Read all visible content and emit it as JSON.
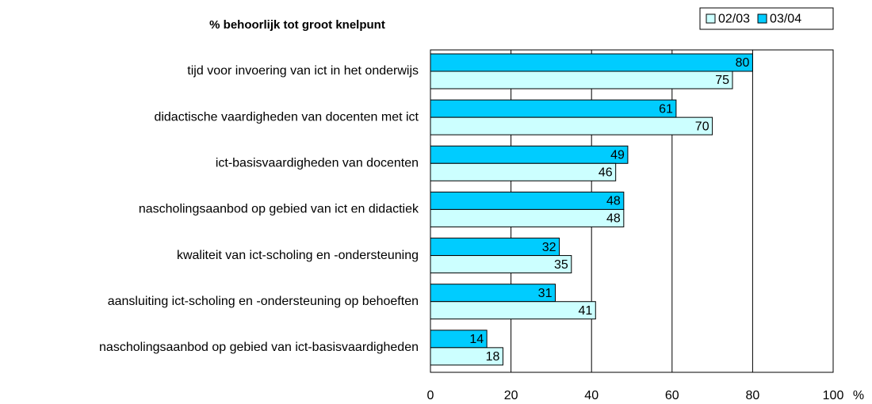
{
  "chart_data": {
    "type": "bar",
    "orientation": "horizontal",
    "title": "% behoorlijk tot groot knelpunt",
    "xlabel": "%",
    "categories": [
      "tijd voor invoering van ict in het onderwijs",
      "didactische vaardigheden van docenten met ict",
      "ict-basisvaardigheden van docenten",
      "nascholingsaanbod op gebied van ict en didactiek",
      "kwaliteit van ict-scholing en -ondersteuning",
      "aansluiting ict-scholing en -ondersteuning op behoeften",
      "nascholingsaanbod op gebied van ict-basisvaardigheden"
    ],
    "series": [
      {
        "name": "02/03",
        "color": "#ccffff",
        "values": [
          75,
          70,
          46,
          48,
          35,
          41,
          18
        ]
      },
      {
        "name": "03/04",
        "color": "#00ccff",
        "values": [
          80,
          61,
          49,
          48,
          32,
          31,
          14
        ]
      }
    ],
    "xlim": [
      0,
      100
    ],
    "xticks": [
      0,
      20,
      40,
      60,
      80,
      100
    ],
    "grid": true,
    "legend": "top-right"
  }
}
